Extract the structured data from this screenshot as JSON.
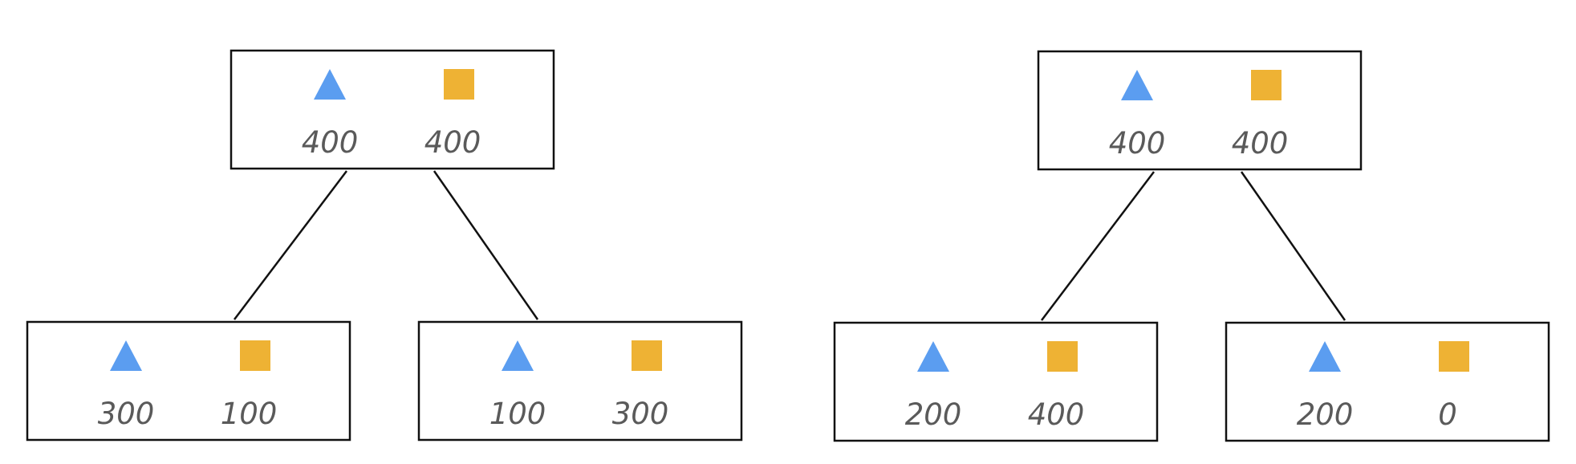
{
  "colors": {
    "triangle": "#5b9df0",
    "square": "#eeb234",
    "box_border": "#111111",
    "edge": "#111111",
    "text": "#5a5a5a"
  },
  "icons": {
    "triangle": "triangle-icon",
    "square": "square-icon"
  },
  "trees": [
    {
      "root": {
        "triangle": "400",
        "square": "400"
      },
      "left": {
        "triangle": "300",
        "square": "100"
      },
      "right": {
        "triangle": "100",
        "square": "300"
      }
    },
    {
      "root": {
        "triangle": "400",
        "square": "400"
      },
      "left": {
        "triangle": "200",
        "square": "400"
      },
      "right": {
        "triangle": "200",
        "square": "0"
      }
    }
  ]
}
